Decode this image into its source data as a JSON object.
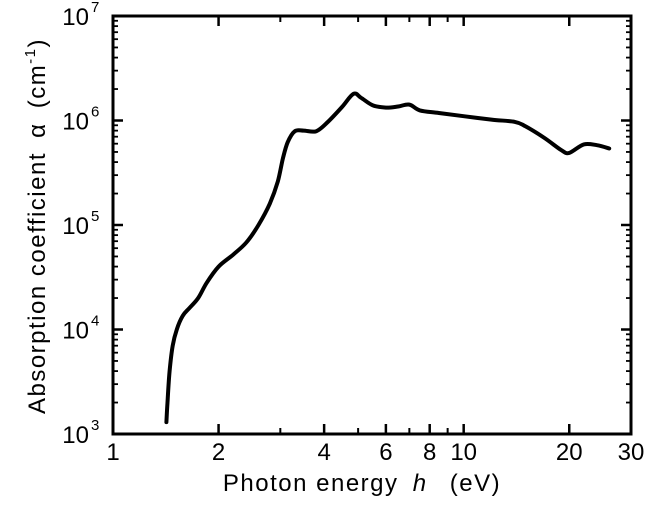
{
  "chart_data": {
    "type": "line",
    "x_scale": "log",
    "y_scale": "log",
    "xlim": [
      1,
      30
    ],
    "ylim": [
      1000,
      10000000
    ],
    "grid": false,
    "legend": "none",
    "xlabel": {
      "prefix": "Photon energy",
      "symbol": "h",
      "unit": "(eV)"
    },
    "ylabel": {
      "prefix": "Absorption coefficient",
      "symbol": "α",
      "unit_open": "(cm",
      "unit_exp": "-1",
      "unit_close": ")"
    },
    "x_ticks": [
      {
        "value": 1,
        "label": "1"
      },
      {
        "value": 2,
        "label": "2"
      },
      {
        "value": 4,
        "label": "4"
      },
      {
        "value": 6,
        "label": "6"
      },
      {
        "value": 8,
        "label": "8"
      },
      {
        "value": 10,
        "label": "10"
      },
      {
        "value": 20,
        "label": "20"
      },
      {
        "value": 30,
        "label": "30"
      }
    ],
    "x_minor_ticks": [
      3,
      5,
      7,
      9
    ],
    "y_ticks": [
      {
        "value": 1000,
        "base": "10",
        "exp": "3"
      },
      {
        "value": 10000,
        "base": "10",
        "exp": "4"
      },
      {
        "value": 100000,
        "base": "10",
        "exp": "5"
      },
      {
        "value": 1000000,
        "base": "10",
        "exp": "6"
      },
      {
        "value": 10000000,
        "base": "10",
        "exp": "7"
      }
    ],
    "series": [
      {
        "x": [
          1.42,
          1.43,
          1.45,
          1.48,
          1.52,
          1.58,
          1.65,
          1.75,
          1.85,
          2.0,
          2.2,
          2.4,
          2.6,
          2.8,
          2.95,
          3.05,
          3.15,
          3.3,
          3.5,
          3.8,
          4.1,
          4.5,
          4.85,
          5.1,
          5.5,
          6.0,
          6.5,
          7.0,
          7.5,
          8.5,
          10,
          12,
          14,
          15,
          17,
          19,
          20,
          22,
          24,
          26
        ],
        "y": [
          1300,
          2000,
          4000,
          7000,
          10000,
          13500,
          16000,
          20000,
          28000,
          40000,
          52000,
          68000,
          100000,
          160000,
          260000,
          430000,
          620000,
          790000,
          800000,
          790000,
          970000,
          1350000,
          1800000,
          1650000,
          1400000,
          1330000,
          1360000,
          1420000,
          1250000,
          1180000,
          1100000,
          1020000,
          970000,
          880000,
          680000,
          520000,
          490000,
          590000,
          580000,
          540000
        ],
        "color": "#000000"
      }
    ]
  }
}
